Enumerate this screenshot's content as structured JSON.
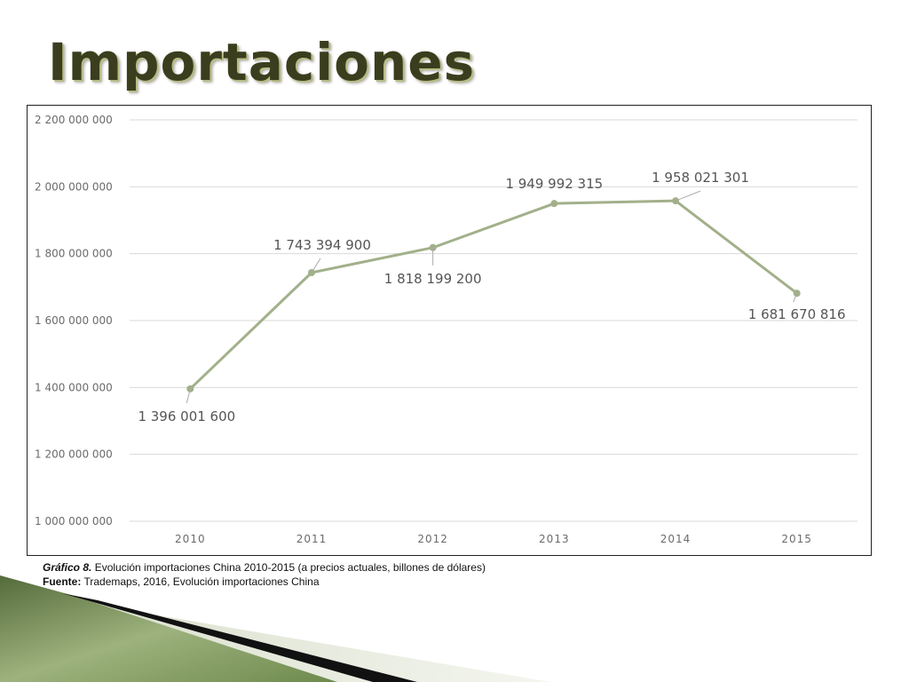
{
  "slide": {
    "title": "Importaciones"
  },
  "caption": {
    "label": "Gráfico 8.",
    "text": " Evolución importaciones China 2010-2015 (a precios actuales, billones de dólares)",
    "source_label": "Fuente:",
    "source_text": " Trademaps, 2016, Evolución importaciones China"
  },
  "colors": {
    "line": "#a2b08a",
    "grid": "#d9d9d9",
    "title": "#3a3e1e"
  },
  "chart_data": {
    "type": "line",
    "title": "",
    "xlabel": "",
    "ylabel": "",
    "categories": [
      "2010",
      "2011",
      "2012",
      "2013",
      "2014",
      "2015"
    ],
    "series": [
      {
        "values": [
          1396001600,
          1743394900,
          1818199200,
          1949992315,
          1958021301,
          1681670816
        ],
        "labels": [
          "1 396 001 600",
          "1 743 394 900",
          "1 818 199 200",
          "1 949 992 315",
          "1 958 021 301",
          "1 681 670 816"
        ]
      }
    ],
    "ylim": [
      1000000000,
      2200000000
    ],
    "yticks": [
      1000000000,
      1200000000,
      1400000000,
      1600000000,
      1800000000,
      2000000000,
      2200000000
    ],
    "ytick_labels": [
      "1 000 000 000",
      "1 200 000 000",
      "1 400 000 000",
      "1 600 000 000",
      "1 800 000 000",
      "2 000 000 000",
      "2 200 000 000"
    ],
    "grid": true,
    "legend": "none"
  }
}
